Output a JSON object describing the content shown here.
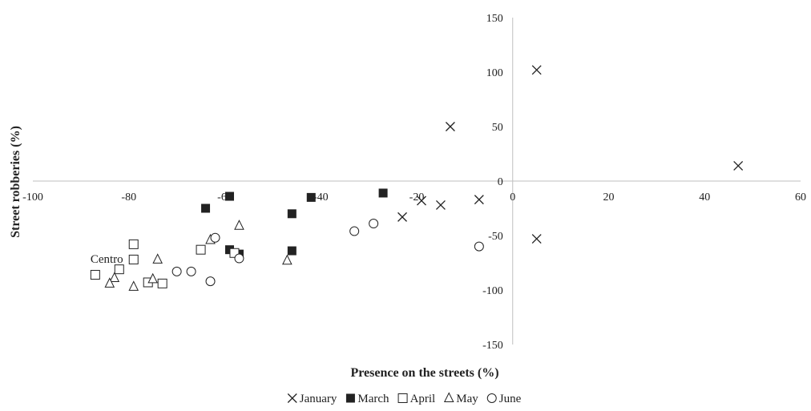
{
  "chart_data": {
    "type": "scatter",
    "title": "",
    "xlabel": "Presence on the streets (%)",
    "ylabel": "Street robberies (%)",
    "xlim": [
      -100,
      60
    ],
    "ylim": [
      -150,
      150
    ],
    "xticks": [
      -100,
      -80,
      -60,
      -40,
      -20,
      0,
      20,
      40,
      60
    ],
    "yticks": [
      -150,
      -100,
      -50,
      0,
      50,
      100,
      150
    ],
    "x_tick_labels": [
      "-100",
      "-80",
      "-60",
      "-40",
      "-20",
      "0",
      "20",
      "40",
      "60"
    ],
    "y_tick_labels": [
      "-150",
      "-100",
      "-50",
      "0",
      "50",
      "100",
      "150"
    ],
    "legend_position": "bottom",
    "grid": false,
    "series": [
      {
        "name": "January",
        "marker": "x",
        "color": "#222222",
        "points": [
          [
            5,
            102
          ],
          [
            -13,
            50
          ],
          [
            47,
            14
          ],
          [
            -23,
            -33
          ],
          [
            -19,
            -18
          ],
          [
            -15,
            -22
          ],
          [
            -7,
            -17
          ],
          [
            5,
            -53
          ]
        ]
      },
      {
        "name": "March",
        "marker": "filled-square",
        "color": "#222222",
        "points": [
          [
            -64,
            -25
          ],
          [
            -59,
            -14
          ],
          [
            -42,
            -15
          ],
          [
            -27,
            -11
          ],
          [
            -46,
            -30
          ],
          [
            -59,
            -63
          ],
          [
            -57,
            -67
          ],
          [
            -46,
            -64
          ]
        ]
      },
      {
        "name": "April",
        "marker": "open-square",
        "color": "#222222",
        "points": [
          [
            -79,
            -58
          ],
          [
            -65,
            -63
          ],
          [
            -58,
            -66
          ],
          [
            -79,
            -72
          ],
          [
            -82,
            -81
          ],
          [
            -87,
            -86
          ],
          [
            -76,
            -93
          ],
          [
            -73,
            -94
          ]
        ]
      },
      {
        "name": "May",
        "marker": "open-triangle",
        "color": "#222222",
        "points": [
          [
            -57,
            -41
          ],
          [
            -63,
            -54
          ],
          [
            -74,
            -72
          ],
          [
            -47,
            -73
          ],
          [
            -83,
            -89
          ],
          [
            -84,
            -94
          ],
          [
            -75,
            -90
          ],
          [
            -79,
            -97
          ]
        ]
      },
      {
        "name": "June",
        "marker": "open-circle",
        "color": "#222222",
        "points": [
          [
            -29,
            -39
          ],
          [
            -33,
            -46
          ],
          [
            -62,
            -52
          ],
          [
            -57,
            -71
          ],
          [
            -7,
            -60
          ],
          [
            -67,
            -83
          ],
          [
            -70,
            -83
          ],
          [
            -63,
            -92
          ]
        ]
      }
    ],
    "annotations": [
      {
        "text": "Centro",
        "x": -88,
        "y": -75
      }
    ]
  }
}
